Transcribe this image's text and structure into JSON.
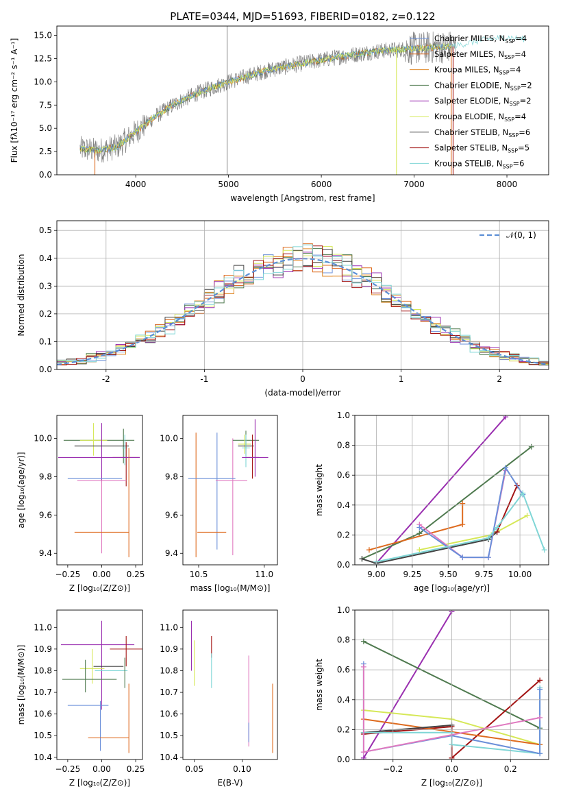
{
  "colors": {
    "chabrier_miles": "#6a8fd9",
    "salpeter_miles": "#de6b1f",
    "kroupa_miles": "#e08a2a",
    "chabrier_elodie": "#4f7a4f",
    "salpeter_elodie": "#9a2fb0",
    "kroupa_elodie": "#d6e858",
    "chabrier_stelib": "#444444",
    "salpeter_stelib": "#a31414",
    "kroupa_stelib": "#7fd6d6",
    "pink": "#e07ac0",
    "spectrum_gray": "#808080",
    "normal_curve": "#5b8fd6"
  },
  "chart_data": [
    {
      "id": "spectrum",
      "type": "line",
      "title": "PLATE=0344, MJD=51693, FIBERID=0182, z=0.122",
      "xlabel": "wavelength [Angstrom, rest frame]",
      "ylabel": "Flux [fλ10⁻¹⁷ erg cm⁻² s⁻¹ A⁻¹]",
      "xlim": [
        3150,
        8450
      ],
      "ylim": [
        0,
        16
      ],
      "xticks": [
        4000,
        5000,
        6000,
        7000,
        8000
      ],
      "yticks": [
        0.0,
        2.5,
        5.0,
        7.5,
        10.0,
        12.5,
        15.0
      ],
      "ytick_labels": [
        "0.0",
        "2.5",
        "5.0",
        "7.5",
        "10.0",
        "12.5",
        "15.0"
      ],
      "legend_position": "upper-right",
      "legend": [
        {
          "label": "Chabrier MILES, N",
          "sub": "SSP",
          "suffix": "=4",
          "color": "#6a8fd9"
        },
        {
          "label": "Salpeter MILES, N",
          "sub": "SSP",
          "suffix": "=4",
          "color": "#de6b1f"
        },
        {
          "label": "Kroupa MILES, N",
          "sub": "SSP",
          "suffix": "=4",
          "color": "#e08a2a"
        },
        {
          "label": "Chabrier ELODIE, N",
          "sub": "SSP",
          "suffix": "=2",
          "color": "#4f7a4f"
        },
        {
          "label": "Salpeter ELODIE, N",
          "sub": "SSP",
          "suffix": "=2",
          "color": "#9a2fb0"
        },
        {
          "label": "Kroupa ELODIE, N",
          "sub": "SSP",
          "suffix": "=4",
          "color": "#d6e858"
        },
        {
          "label": "Chabrier STELIB, N",
          "sub": "SSP",
          "suffix": "=6",
          "color": "#444444"
        },
        {
          "label": "Salpeter STELIB, N",
          "sub": "SSP",
          "suffix": "=5",
          "color": "#a31414"
        },
        {
          "label": "Kroupa STELIB, N",
          "sub": "SSP",
          "suffix": "=6",
          "color": "#7fd6d6"
        }
      ],
      "data_envelope": {
        "wavelength": [
          3400,
          3600,
          3800,
          4000,
          4200,
          4400,
          4600,
          4800,
          5000,
          5400,
          5800,
          6200,
          6600,
          7000,
          7400
        ],
        "flux": [
          2.8,
          2.6,
          3.0,
          4.6,
          6.2,
          7.5,
          8.5,
          9.3,
          10.0,
          11.2,
          12.0,
          12.7,
          13.3,
          13.6,
          13.8
        ]
      },
      "model_extension": {
        "wavelength": [
          7400,
          7600,
          7800,
          8000,
          8200
        ],
        "flux": [
          13.8,
          14.2,
          14.6,
          14.8,
          14.6
        ]
      },
      "model_dropouts": [
        {
          "wavelength": 3560,
          "color": "#de6b1f"
        },
        {
          "wavelength": 6810,
          "color": "#d6e858"
        },
        {
          "wavelength": 7400,
          "color": "#de6b1f"
        },
        {
          "wavelength": 7420,
          "color": "#a31414"
        }
      ],
      "spike_line": {
        "wavelength": 4985,
        "color": "#808080"
      }
    },
    {
      "id": "residuals",
      "type": "histogram",
      "xlabel": "(data-model)/error",
      "ylabel": "Normed distribution",
      "xlim": [
        -2.5,
        2.5
      ],
      "ylim": [
        0,
        0.535
      ],
      "xticks": [
        -2,
        -1,
        0,
        1,
        2
      ],
      "yticks": [
        0.0,
        0.1,
        0.2,
        0.3,
        0.4,
        0.5
      ],
      "ytick_labels": [
        "0.0",
        "0.1",
        "0.2",
        "0.3",
        "0.4",
        "0.5"
      ],
      "grid": true,
      "legend_position": "upper-right",
      "legend": [
        {
          "label": "𝒩(0, 1)",
          "color": "#5b8fd6",
          "style": "dashed"
        }
      ],
      "bin_width": 0.1,
      "bin_start": -2.5,
      "series_colors": [
        "#6a8fd9",
        "#de6b1f",
        "#e08a2a",
        "#4f7a4f",
        "#9a2fb0",
        "#d6e858",
        "#444444",
        "#a31414",
        "#7fd6d6"
      ]
    },
    {
      "id": "age_vs_Z",
      "type": "errorbar",
      "xlabel": "Z [log₁₀(Z/Z⊙)]",
      "ylabel": "age  [log₁₀(age/yr)]",
      "xlim": [
        -0.33,
        0.3
      ],
      "ylim": [
        9.34,
        10.12
      ],
      "xticks": [
        -0.25,
        0.0,
        0.25
      ],
      "xtick_labels": [
        "−0.25",
        "0.00",
        "0.25"
      ],
      "yticks": [
        9.4,
        9.6,
        9.8,
        10.0
      ],
      "ytick_labels": [
        "9.4",
        "9.6",
        "9.8",
        "10.0"
      ],
      "points": [
        {
          "x": -0.02,
          "y": 9.99,
          "xerr": 0.26,
          "yerr_lo": 0.0,
          "yerr_hi": 0.0,
          "color": "#4f7a4f"
        },
        {
          "x": -0.06,
          "y": 9.99,
          "xerr": 0.1,
          "yerr_lo": 0.08,
          "yerr_hi": 0.09,
          "color": "#d6e858"
        },
        {
          "x": 0.0,
          "y": 9.99,
          "xerr": 0.0,
          "yerr_lo": 0.22,
          "yerr_hi": 0.09,
          "color": "#9a2fb0"
        },
        {
          "x": 0.16,
          "y": 9.99,
          "xerr": 0.0,
          "yerr_lo": 0.12,
          "yerr_hi": 0.06,
          "color": "#4f7a4f"
        },
        {
          "x": 0.0,
          "y": 9.96,
          "xerr": 0.2,
          "yerr_lo": 0.0,
          "yerr_hi": 0.0,
          "color": "#444444"
        },
        {
          "x": 0.17,
          "y": 9.95,
          "xerr": 0.02,
          "yerr_lo": 0.09,
          "yerr_hi": 0.07,
          "color": "#7fd6d6"
        },
        {
          "x": 0.18,
          "y": 9.9,
          "xerr": 0.1,
          "yerr_lo": 0.15,
          "yerr_hi": 0.08,
          "color": "#a31414"
        },
        {
          "x": -0.02,
          "y": 9.9,
          "xerr": 0.3,
          "yerr_lo": 0.0,
          "yerr_hi": 0.0,
          "color": "#9a2fb0"
        },
        {
          "x": -0.05,
          "y": 9.79,
          "xerr": 0.2,
          "yerr_lo": 0.0,
          "yerr_hi": 0.0,
          "color": "#6a8fd9"
        },
        {
          "x": 0.0,
          "y": 9.78,
          "xerr": 0.18,
          "yerr_lo": 0.38,
          "yerr_hi": 0.0,
          "color": "#e07ac0"
        },
        {
          "x": 0.2,
          "y": 9.7,
          "xerr": 0.0,
          "yerr_lo": 0.32,
          "yerr_hi": 0.25,
          "color": "#de6b1f"
        },
        {
          "x": 0.0,
          "y": 9.51,
          "xerr": 0.2,
          "yerr_lo": 0.0,
          "yerr_hi": 0.0,
          "color": "#de6b1f"
        }
      ]
    },
    {
      "id": "age_vs_mass",
      "type": "errorbar",
      "xlabel": "mass [log₁₀(M/M⊙)]",
      "ylabel": "",
      "xlim": [
        10.38,
        11.1
      ],
      "ylim": [
        9.34,
        10.12
      ],
      "xticks": [
        10.5,
        11.0
      ],
      "xtick_labels": [
        "10.5",
        "11.0"
      ],
      "yticks": [
        9.4,
        9.6,
        9.8,
        10.0
      ],
      "ytick_labels": [
        "9.4",
        "9.6",
        "9.8",
        "10.0"
      ],
      "points": [
        {
          "x": 10.48,
          "y": 9.7,
          "xerr": 0.0,
          "yerr_lo": 0.32,
          "yerr_hi": 0.33,
          "color": "#de6b1f"
        },
        {
          "x": 10.64,
          "y": 9.7,
          "xerr": 0.0,
          "yerr_lo": 0.28,
          "yerr_hi": 0.33,
          "color": "#6a8fd9"
        },
        {
          "x": 10.76,
          "y": 9.7,
          "xerr": 0.0,
          "yerr_lo": 0.31,
          "yerr_hi": 0.3,
          "color": "#e07ac0"
        },
        {
          "x": 10.6,
          "y": 9.79,
          "xerr": 0.18,
          "yerr_lo": 0.0,
          "yerr_hi": 0.0,
          "color": "#6a8fd9"
        },
        {
          "x": 10.75,
          "y": 9.78,
          "xerr": 0.12,
          "yerr_lo": 0.0,
          "yerr_hi": 0.0,
          "color": "#e07ac0"
        },
        {
          "x": 10.6,
          "y": 9.51,
          "xerr": 0.11,
          "yerr_lo": 0.0,
          "yerr_hi": 0.0,
          "color": "#de6b1f"
        },
        {
          "x": 10.86,
          "y": 9.99,
          "xerr": 0.1,
          "yerr_lo": 0.04,
          "yerr_hi": 0.05,
          "color": "#4f7a4f"
        },
        {
          "x": 10.85,
          "y": 9.97,
          "xerr": 0.05,
          "yerr_lo": 0.05,
          "yerr_hi": 0.05,
          "color": "#d6e858"
        },
        {
          "x": 10.86,
          "y": 9.96,
          "xerr": 0.06,
          "yerr_lo": 0.05,
          "yerr_hi": 0.03,
          "color": "#444444"
        },
        {
          "x": 10.86,
          "y": 9.95,
          "xerr": 0.03,
          "yerr_lo": 0.1,
          "yerr_hi": 0.07,
          "color": "#7fd6d6"
        },
        {
          "x": 10.91,
          "y": 9.9,
          "xerr": 0.05,
          "yerr_lo": 0.11,
          "yerr_hi": 0.12,
          "color": "#a31414"
        },
        {
          "x": 10.93,
          "y": 9.9,
          "xerr": 0.1,
          "yerr_lo": 0.1,
          "yerr_hi": 0.2,
          "color": "#9a2fb0"
        }
      ]
    },
    {
      "id": "weight_vs_age",
      "type": "line",
      "xlabel": "age  [log₁₀(age/yr)]",
      "ylabel": "mass weight",
      "xlim": [
        8.85,
        10.2
      ],
      "ylim": [
        0,
        1.0
      ],
      "xticks": [
        9.0,
        9.25,
        9.5,
        9.75,
        10.0
      ],
      "xtick_labels": [
        "9.00",
        "9.25",
        "9.50",
        "9.75",
        "10.00"
      ],
      "yticks": [
        0.0,
        0.2,
        0.4,
        0.6,
        0.8,
        1.0
      ],
      "ytick_labels": [
        "0.0",
        "0.2",
        "0.4",
        "0.6",
        "0.8",
        "1.0"
      ],
      "grid": true,
      "series": [
        {
          "color": "#9a2fb0",
          "x": [
            9.0,
            9.9
          ],
          "y": [
            0.01,
            0.99
          ]
        },
        {
          "color": "#4f7a4f",
          "x": [
            8.9,
            9.3,
            10.08
          ],
          "y": [
            0.04,
            0.21,
            0.79
          ]
        },
        {
          "color": "#de6b1f",
          "x": [
            8.95,
            9.6,
            9.6
          ],
          "y": [
            0.1,
            0.27,
            0.41
          ]
        },
        {
          "color": "#d6e858",
          "x": [
            9.3,
            9.8,
            10.05
          ],
          "y": [
            0.1,
            0.2,
            0.33
          ]
        },
        {
          "color": "#444444",
          "x": [
            8.9,
            9.0,
            9.78,
            9.84
          ],
          "y": [
            0.04,
            0.01,
            0.17,
            0.22
          ]
        },
        {
          "color": "#a31414",
          "x": [
            9.84,
            9.98
          ],
          "y": [
            0.22,
            0.53
          ]
        },
        {
          "color": "#e07ac0",
          "x": [
            9.3,
            9.6,
            9.78,
            9.9
          ],
          "y": [
            0.27,
            0.05,
            0.05,
            0.63
          ]
        },
        {
          "color": "#6a8fd9",
          "x": [
            9.3,
            9.6,
            9.78,
            9.9,
            10.02
          ],
          "y": [
            0.25,
            0.05,
            0.05,
            0.65,
            0.47
          ]
        },
        {
          "color": "#7fd6d6",
          "x": [
            9.0,
            9.78,
            9.84,
            10.02,
            10.17
          ],
          "y": [
            0.02,
            0.18,
            0.25,
            0.48,
            0.1
          ]
        }
      ]
    },
    {
      "id": "mass_vs_Z",
      "type": "errorbar",
      "xlabel": "Z [log₁₀(Z/Z⊙)]",
      "ylabel": "mass [log₁₀(M/M⊙)]",
      "xlim": [
        -0.33,
        0.3
      ],
      "ylim": [
        10.39,
        11.08
      ],
      "xticks": [
        -0.25,
        0.0,
        0.25
      ],
      "xtick_labels": [
        "−0.25",
        "0.00",
        "0.25"
      ],
      "yticks": [
        10.4,
        10.5,
        10.6,
        10.7,
        10.8,
        10.9,
        11.0
      ],
      "ytick_labels": [
        "10.4",
        "10.5",
        "10.6",
        "10.7",
        "10.8",
        "10.9",
        "11.0"
      ],
      "points": [
        {
          "x": -0.03,
          "y": 10.92,
          "xerr": 0.27,
          "yerr_lo": 0.0,
          "yerr_hi": 0.0,
          "color": "#9a2fb0"
        },
        {
          "x": 0.0,
          "y": 10.92,
          "xerr": 0.0,
          "yerr_lo": 0.3,
          "yerr_hi": 0.11,
          "color": "#9a2fb0"
        },
        {
          "x": 0.18,
          "y": 10.9,
          "xerr": 0.12,
          "yerr_lo": 0.08,
          "yerr_hi": 0.06,
          "color": "#a31414"
        },
        {
          "x": 0.05,
          "y": 10.82,
          "xerr": 0.11,
          "yerr_lo": 0.0,
          "yerr_hi": 0.0,
          "color": "#444444"
        },
        {
          "x": -0.07,
          "y": 10.81,
          "xerr": 0.09,
          "yerr_lo": 0.07,
          "yerr_hi": 0.09,
          "color": "#d6e858"
        },
        {
          "x": 0.07,
          "y": 10.8,
          "xerr": 0.12,
          "yerr_lo": 0.0,
          "yerr_hi": 0.0,
          "color": "#7fd6d6"
        },
        {
          "x": 0.17,
          "y": 10.8,
          "xerr": 0.0,
          "yerr_lo": 0.08,
          "yerr_hi": 0.06,
          "color": "#4f7a4f"
        },
        {
          "x": -0.09,
          "y": 10.76,
          "xerr": 0.2,
          "yerr_lo": 0.0,
          "yerr_hi": 0.0,
          "color": "#4f7a4f"
        },
        {
          "x": -0.12,
          "y": 10.76,
          "xerr": 0.0,
          "yerr_lo": 0.06,
          "yerr_hi": 0.09,
          "color": "#4f7a4f"
        },
        {
          "x": -0.1,
          "y": 10.64,
          "xerr": 0.15,
          "yerr_lo": 0.0,
          "yerr_hi": 0.0,
          "color": "#6a8fd9"
        },
        {
          "x": -0.01,
          "y": 10.56,
          "xerr": 0.0,
          "yerr_lo": 0.13,
          "yerr_hi": 0.1,
          "color": "#6a8fd9"
        },
        {
          "x": 0.05,
          "y": 10.49,
          "xerr": 0.15,
          "yerr_lo": 0.0,
          "yerr_hi": 0.0,
          "color": "#de6b1f"
        },
        {
          "x": 0.2,
          "y": 10.58,
          "xerr": 0.0,
          "yerr_lo": 0.16,
          "yerr_hi": 0.16,
          "color": "#de6b1f"
        }
      ]
    },
    {
      "id": "mass_vs_EBV",
      "type": "errorbar",
      "xlabel": "E(B-V)",
      "ylabel": "",
      "xlim": [
        0.038,
        0.137
      ],
      "ylim": [
        10.39,
        11.08
      ],
      "xticks": [
        0.05,
        0.1
      ],
      "xtick_labels": [
        "0.05",
        "0.10"
      ],
      "yticks": [
        10.4,
        10.5,
        10.6,
        10.7,
        10.8,
        10.9,
        11.0
      ],
      "ytick_labels": [
        "10.4",
        "10.5",
        "10.6",
        "10.7",
        "10.8",
        "10.9",
        "11.0"
      ],
      "points": [
        {
          "x": 0.047,
          "y": 10.92,
          "xerr": 0.0,
          "yerr_lo": 0.12,
          "yerr_hi": 0.11,
          "color": "#9a2fb0"
        },
        {
          "x": 0.05,
          "y": 10.82,
          "xerr": 0.0,
          "yerr_lo": 0.09,
          "yerr_hi": 0.12,
          "color": "#d6e858"
        },
        {
          "x": 0.068,
          "y": 10.9,
          "xerr": 0.0,
          "yerr_lo": 0.04,
          "yerr_hi": 0.06,
          "color": "#a31414"
        },
        {
          "x": 0.068,
          "y": 10.8,
          "xerr": 0.0,
          "yerr_lo": 0.08,
          "yerr_hi": 0.08,
          "color": "#7fd6d6"
        },
        {
          "x": 0.107,
          "y": 10.64,
          "xerr": 0.0,
          "yerr_lo": 0.19,
          "yerr_hi": 0.23,
          "color": "#e07ac0"
        },
        {
          "x": 0.107,
          "y": 10.5,
          "xerr": 0.0,
          "yerr_lo": 0.03,
          "yerr_hi": 0.06,
          "color": "#6a8fd9"
        },
        {
          "x": 0.132,
          "y": 10.58,
          "xerr": 0.0,
          "yerr_lo": 0.16,
          "yerr_hi": 0.16,
          "color": "#de6b1f"
        }
      ]
    },
    {
      "id": "weight_vs_Z",
      "type": "line",
      "xlabel": "Z [log₁₀(Z/Z⊙)]",
      "ylabel": "mass weight",
      "xlim": [
        -0.33,
        0.33
      ],
      "ylim": [
        0,
        1.0
      ],
      "xticks": [
        -0.2,
        0.0,
        0.2
      ],
      "xtick_labels": [
        "−0.2",
        "0.0",
        "0.2"
      ],
      "yticks": [
        0.0,
        0.2,
        0.4,
        0.6,
        0.8,
        1.0
      ],
      "ytick_labels": [
        "0.0",
        "0.2",
        "0.4",
        "0.6",
        "0.8",
        "1.0"
      ],
      "grid": true,
      "series": [
        {
          "color": "#9a2fb0",
          "x": [
            -0.3,
            0.0
          ],
          "y": [
            0.01,
            0.99
          ]
        },
        {
          "color": "#4f7a4f",
          "x": [
            -0.3,
            0.3
          ],
          "y": [
            0.79,
            0.21
          ]
        },
        {
          "color": "#a31414",
          "x": [
            -0.3,
            0.0,
            0.0,
            0.3
          ],
          "y": [
            0.17,
            0.22,
            0.01,
            0.53
          ]
        },
        {
          "color": "#d6e858",
          "x": [
            -0.3,
            0.0,
            0.3
          ],
          "y": [
            0.33,
            0.27,
            0.1
          ]
        },
        {
          "color": "#de6b1f",
          "x": [
            -0.3,
            0.3
          ],
          "y": [
            0.27,
            0.1
          ]
        },
        {
          "color": "#444444",
          "x": [
            -0.3,
            0.0
          ],
          "y": [
            0.18,
            0.23
          ]
        },
        {
          "color": "#7fd6d6",
          "x": [
            -0.3,
            0.0,
            0.0,
            0.3,
            0.3
          ],
          "y": [
            0.18,
            0.18,
            0.1,
            0.04,
            0.48
          ]
        },
        {
          "color": "#6a8fd9",
          "x": [
            -0.3,
            -0.3,
            0.0,
            0.3,
            0.3
          ],
          "y": [
            0.64,
            0.05,
            0.16,
            0.04,
            0.47
          ]
        },
        {
          "color": "#e07ac0",
          "x": [
            -0.3,
            -0.3,
            0.3
          ],
          "y": [
            0.62,
            0.05,
            0.28
          ]
        }
      ]
    }
  ]
}
